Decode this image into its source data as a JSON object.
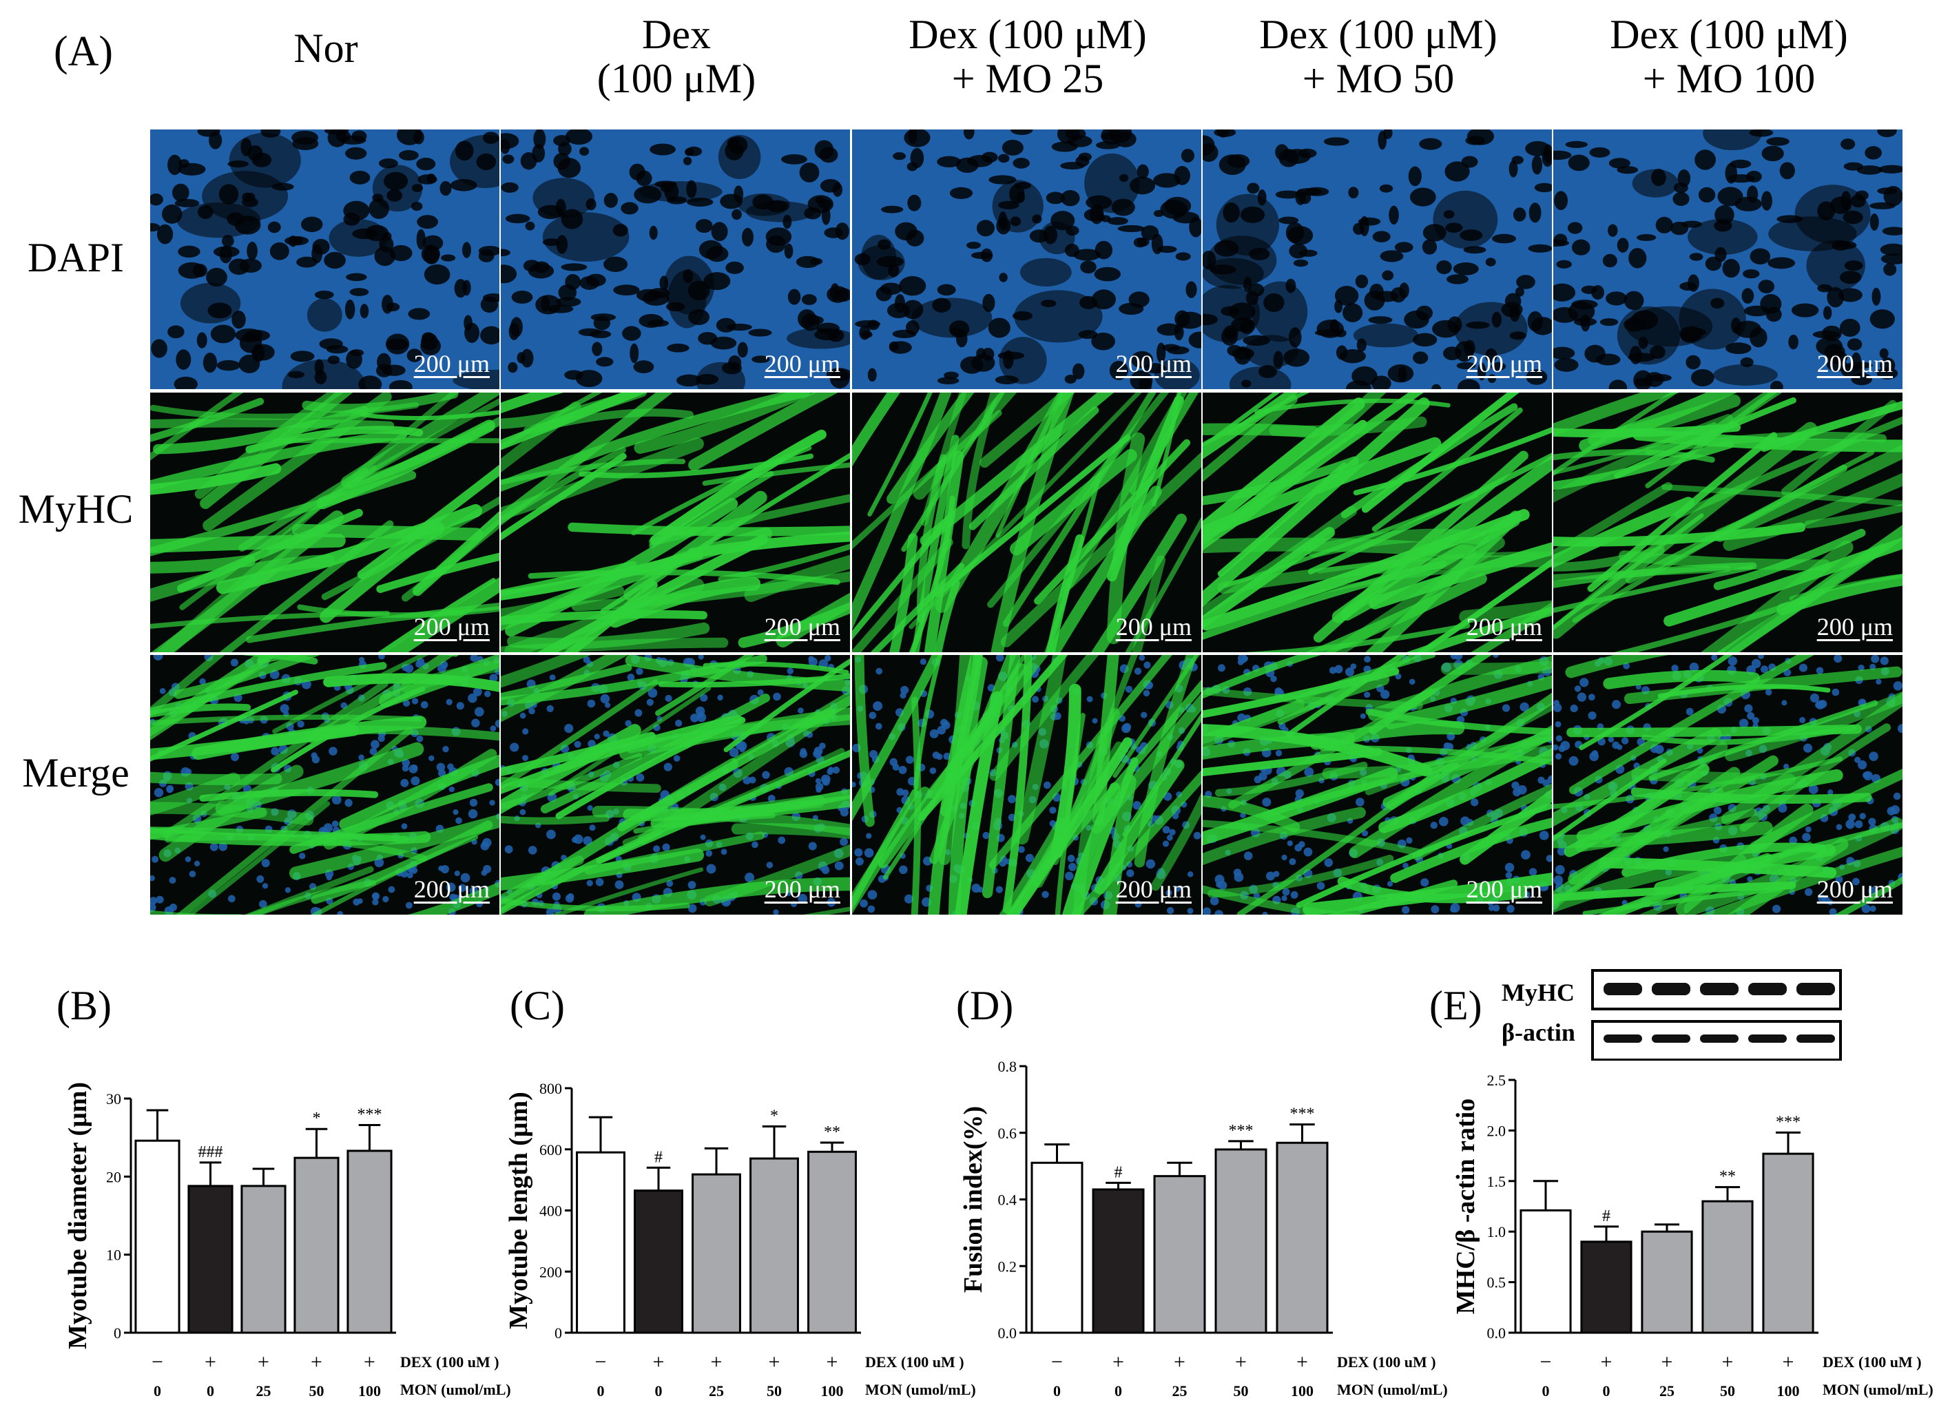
{
  "panelA": {
    "letter": "(A)",
    "columns": [
      {
        "l1": "Nor",
        "l2": ""
      },
      {
        "l1": "Dex",
        "l2": "(100 μM)"
      },
      {
        "l1": "Dex (100 μM)",
        "l2": "+ MO 25"
      },
      {
        "l1": "Dex (100 μM)",
        "l2": "+ MO 50"
      },
      {
        "l1": "Dex (100 μM)",
        "l2": "+ MO 100"
      }
    ],
    "rows": [
      "DAPI",
      "MyHC",
      "Merge"
    ],
    "scale_bar": "200 μm",
    "colors": {
      "dapi": "#1f5fa8",
      "myhc": "#2fd23a",
      "background": "#040806"
    }
  },
  "blot": {
    "labels": [
      "MyHC",
      "β-actin"
    ],
    "lanes": 5
  },
  "chart_data": [
    {
      "type": "bar",
      "letter": "(B)",
      "ylabel": "Myotube diameter (μm)",
      "ylim": [
        0,
        30
      ],
      "yticks": [
        "0",
        "10",
        "20",
        "30"
      ],
      "categories": [
        "Nor",
        "Dex",
        "Dex+MO25",
        "Dex+MO50",
        "Dex+MO100"
      ],
      "values": [
        24.6,
        18.8,
        18.8,
        22.4,
        23.3
      ],
      "errors": [
        3.9,
        3.0,
        2.2,
        3.7,
        3.3
      ],
      "annotations": [
        "",
        "###",
        "",
        "*",
        "***"
      ],
      "dex_row": [
        "−",
        "+",
        "+",
        "+",
        "+"
      ],
      "dex_label": "DEX (100 uM )",
      "mon_row": [
        "0",
        "0",
        "25",
        "50",
        "100"
      ],
      "mon_label": "MON (umol/mL)"
    },
    {
      "type": "bar",
      "letter": "(C)",
      "ylabel": "Myotube length (μm)",
      "ylim": [
        0,
        800
      ],
      "yticks": [
        "0",
        "200",
        "400",
        "600",
        "800"
      ],
      "categories": [
        "Nor",
        "Dex",
        "Dex+MO25",
        "Dex+MO50",
        "Dex+MO100"
      ],
      "values": [
        590,
        465,
        518,
        570,
        592
      ],
      "errors": [
        115,
        75,
        85,
        105,
        30
      ],
      "annotations": [
        "",
        "#",
        "",
        "*",
        "**"
      ],
      "dex_row": [
        "−",
        "+",
        "+",
        "+",
        "+"
      ],
      "dex_label": "DEX (100 uM )",
      "mon_row": [
        "0",
        "0",
        "25",
        "50",
        "100"
      ],
      "mon_label": "MON (umol/mL)"
    },
    {
      "type": "bar",
      "letter": "(D)",
      "ylabel": "Fusion index(%)",
      "ylim": [
        0,
        0.8
      ],
      "yticks": [
        "0.0",
        "0.2",
        "0.4",
        "0.6",
        "0.8"
      ],
      "categories": [
        "Nor",
        "Dex",
        "Dex+MO25",
        "Dex+MO50",
        "Dex+MO100"
      ],
      "values": [
        0.51,
        0.43,
        0.47,
        0.55,
        0.57
      ],
      "errors": [
        0.055,
        0.02,
        0.04,
        0.025,
        0.055
      ],
      "annotations": [
        "",
        "#",
        "",
        "***",
        "***"
      ],
      "dex_row": [
        "−",
        "+",
        "+",
        "+",
        "+"
      ],
      "dex_label": "DEX (100 uM )",
      "mon_row": [
        "0",
        "0",
        "25",
        "50",
        "100"
      ],
      "mon_label": "MON (umol/mL)"
    },
    {
      "type": "bar",
      "letter": "(E)",
      "ylabel": "MHC/β -actin ratio",
      "ylim": [
        0,
        2.5
      ],
      "yticks": [
        "0.0",
        "0.5",
        "1.0",
        "1.5",
        "2.0",
        "2.5"
      ],
      "categories": [
        "Nor",
        "Dex",
        "Dex+MO25",
        "Dex+MO50",
        "Dex+MO100"
      ],
      "values": [
        1.21,
        0.9,
        1.0,
        1.3,
        1.77
      ],
      "errors": [
        0.29,
        0.15,
        0.07,
        0.14,
        0.21
      ],
      "annotations": [
        "",
        "#",
        "",
        "**",
        "***"
      ],
      "dex_row": [
        "−",
        "+",
        "+",
        "+",
        "+"
      ],
      "dex_label": "DEX (100 uM )",
      "mon_row": [
        "0",
        "0",
        "25",
        "50",
        "100"
      ],
      "mon_label": "MON (umol/mL)"
    }
  ],
  "bar_colors": [
    "#ffffff",
    "#231f20",
    "#a7a9ac",
    "#a7a9ac",
    "#a7a9ac"
  ]
}
